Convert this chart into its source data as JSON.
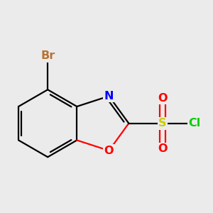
{
  "background_color": "#ebebeb",
  "bond_color": "#000000",
  "bond_width": 1.6,
  "atom_colors": {
    "Br": "#b87333",
    "N": "#0000ff",
    "O": "#ff0000",
    "S": "#cccc00",
    "Cl": "#00cc00"
  },
  "font_size": 11.5
}
